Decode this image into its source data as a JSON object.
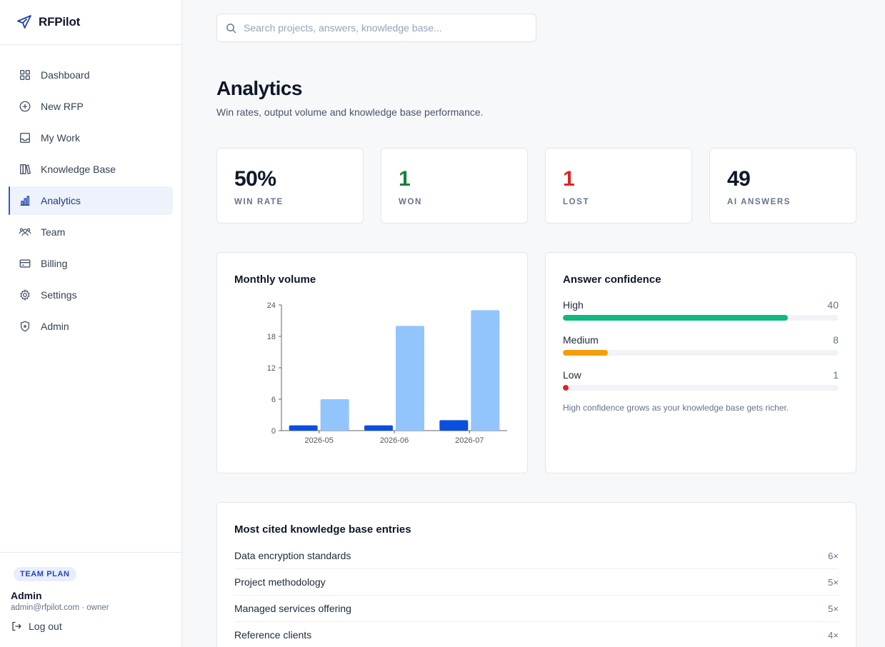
{
  "brand": {
    "name": "RFPilot"
  },
  "nav": [
    {
      "label": "Dashboard",
      "icon": "grid-icon"
    },
    {
      "label": "New RFP",
      "icon": "plus-circle-icon"
    },
    {
      "label": "My Work",
      "icon": "inbox-icon"
    },
    {
      "label": "Knowledge Base",
      "icon": "books-icon"
    },
    {
      "label": "Analytics",
      "icon": "bar-chart-icon",
      "active": true
    },
    {
      "label": "Team",
      "icon": "users-icon"
    },
    {
      "label": "Billing",
      "icon": "credit-card-icon"
    },
    {
      "label": "Settings",
      "icon": "gear-icon"
    },
    {
      "label": "Admin",
      "icon": "shield-icon"
    }
  ],
  "footer": {
    "plan": "TEAM PLAN",
    "user_name": "Admin",
    "user_sub": "admin@rfpilot.com · owner",
    "logout": "Log out"
  },
  "search": {
    "placeholder": "Search projects, answers, knowledge base..."
  },
  "page": {
    "title": "Analytics",
    "subtitle": "Win rates, output volume and knowledge base performance."
  },
  "kpis": [
    {
      "value": "50%",
      "label": "WIN RATE",
      "color": "#0f172a"
    },
    {
      "value": "1",
      "label": "WON",
      "color": "#15803d"
    },
    {
      "value": "1",
      "label": "LOST",
      "color": "#dc2626"
    },
    {
      "value": "49",
      "label": "AI ANSWERS",
      "color": "#0f172a"
    }
  ],
  "volume": {
    "title": "Monthly volume"
  },
  "chart_data": {
    "type": "bar",
    "title": "Monthly volume",
    "categories": [
      "2026-05",
      "2026-06",
      "2026-07"
    ],
    "series": [
      {
        "values": [
          1,
          1,
          2
        ],
        "color": "#0b4fe0"
      },
      {
        "values": [
          6,
          20,
          23
        ],
        "color": "#93c5fd"
      }
    ],
    "ylim": [
      0,
      24
    ],
    "yticks": [
      0,
      6,
      12,
      18,
      24
    ],
    "grid": false
  },
  "confidence": {
    "title": "Answer confidence",
    "total": 49,
    "levels": [
      {
        "label": "High",
        "count": 40,
        "value": 40,
        "color": "#10b981"
      },
      {
        "label": "Medium",
        "count": 8,
        "value": 8,
        "color": "#f59e0b"
      },
      {
        "label": "Low",
        "count": 1,
        "value": 1,
        "color": "#dc2626"
      }
    ],
    "note": "High confidence grows as your knowledge base gets richer."
  },
  "cited": {
    "title": "Most cited knowledge base entries",
    "rows": [
      {
        "name": "Data encryption standards",
        "count": "6×"
      },
      {
        "name": "Project methodology",
        "count": "5×"
      },
      {
        "name": "Managed services offering",
        "count": "5×"
      },
      {
        "name": "Reference clients",
        "count": "4×"
      }
    ]
  }
}
